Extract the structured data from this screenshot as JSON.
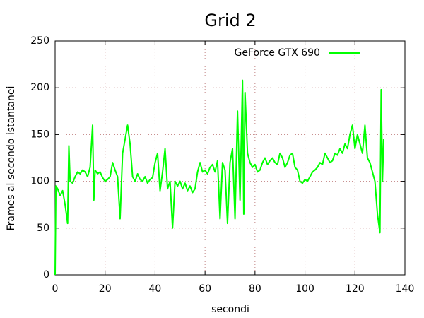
{
  "chart_data": {
    "type": "line",
    "title": "Grid 2",
    "xlabel": "secondi",
    "ylabel": "Frames al secondo istantanei",
    "xlim": [
      0,
      140
    ],
    "ylim": [
      0,
      250
    ],
    "xticks": [
      0,
      20,
      40,
      60,
      80,
      100,
      120,
      140
    ],
    "yticks": [
      0,
      50,
      100,
      150,
      200,
      250
    ],
    "grid": true,
    "legend": "upper-right",
    "x": [
      0,
      0.3,
      1,
      2,
      3,
      4,
      5,
      5.5,
      6,
      7,
      8,
      9,
      10,
      11,
      12,
      13,
      14,
      15,
      15.5,
      16,
      17,
      18,
      19,
      20,
      21,
      22,
      23,
      24,
      25,
      26,
      27,
      28,
      29,
      30,
      31,
      32,
      33,
      34,
      35,
      36,
      37,
      38,
      39,
      40,
      41,
      42,
      43,
      44,
      45,
      46,
      47,
      48,
      49,
      50,
      51,
      52,
      53,
      54,
      55,
      56,
      57,
      58,
      59,
      60,
      61,
      62,
      63,
      64,
      65,
      66,
      67,
      68,
      69,
      70,
      71,
      72,
      73,
      74,
      75,
      75.5,
      76,
      77,
      78,
      79,
      80,
      81,
      82,
      83,
      84,
      85,
      86,
      87,
      88,
      89,
      90,
      91,
      92,
      93,
      94,
      95,
      96,
      97,
      98,
      99,
      100,
      101,
      102,
      103,
      104,
      105,
      106,
      107,
      108,
      109,
      110,
      111,
      112,
      113,
      114,
      115,
      116,
      117,
      118,
      119,
      120,
      121,
      122,
      123,
      124,
      125,
      126,
      127,
      128,
      129,
      130,
      130.5,
      131,
      131.5
    ],
    "series": [
      {
        "name": "GeForce GTX 690",
        "color": "#00ff00",
        "values": [
          0,
          95,
          92,
          85,
          90,
          75,
          55,
          138,
          100,
          98,
          105,
          110,
          108,
          112,
          110,
          105,
          115,
          160,
          80,
          112,
          108,
          110,
          104,
          100,
          102,
          105,
          120,
          112,
          105,
          60,
          130,
          145,
          160,
          140,
          105,
          100,
          108,
          102,
          100,
          105,
          98,
          102,
          104,
          120,
          130,
          90,
          110,
          135,
          92,
          100,
          50,
          100,
          95,
          100,
          92,
          98,
          90,
          95,
          88,
          92,
          110,
          120,
          110,
          112,
          108,
          115,
          118,
          110,
          122,
          60,
          120,
          112,
          55,
          120,
          135,
          60,
          175,
          80,
          208,
          65,
          195,
          130,
          120,
          115,
          118,
          110,
          112,
          120,
          125,
          118,
          122,
          125,
          120,
          118,
          130,
          125,
          115,
          120,
          128,
          130,
          115,
          112,
          100,
          98,
          102,
          100,
          105,
          110,
          112,
          115,
          120,
          118,
          130,
          125,
          120,
          122,
          130,
          128,
          135,
          130,
          140,
          135,
          150,
          160,
          135,
          150,
          140,
          130,
          160,
          125,
          120,
          110,
          100,
          65,
          45,
          198,
          100,
          145
        ]
      }
    ]
  }
}
